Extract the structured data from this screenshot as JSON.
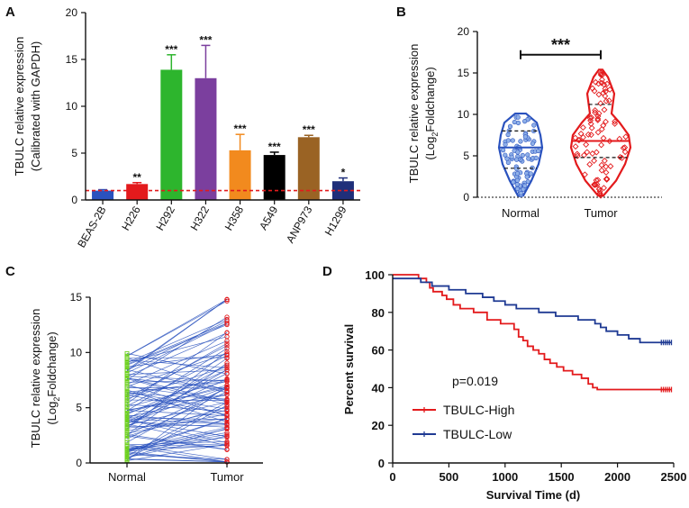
{
  "chart_data": [
    {
      "panel": "A",
      "type": "bar",
      "ylabel_line1": "TBULC relative expression",
      "ylabel_line2": "(Calibrated with GAPDH)",
      "ylim": [
        0,
        20
      ],
      "yticks": [
        0,
        5,
        10,
        15,
        20
      ],
      "categories": [
        "BEAS-2B",
        "H226",
        "H292",
        "H322",
        "H358",
        "A549",
        "ANP973",
        "H1299"
      ],
      "values": [
        1.0,
        1.7,
        13.9,
        13.0,
        5.3,
        4.8,
        6.7,
        2.0
      ],
      "errors": [
        0.1,
        0.15,
        1.6,
        3.5,
        1.7,
        0.3,
        0.2,
        0.35
      ],
      "significance": [
        "",
        "**",
        "***",
        "***",
        "***",
        "***",
        "***",
        "*"
      ],
      "colors": [
        "#2a52be",
        "#e31a1c",
        "#2db52d",
        "#7b3f9e",
        "#f28a1e",
        "#000000",
        "#9a6324",
        "#1f2f7a"
      ],
      "reference_line": 1
    },
    {
      "panel": "B",
      "type": "violin",
      "ylabel_line1": "TBULC relative expression",
      "ylabel_line2": "(Log",
      "ylabel_sub": "2",
      "ylabel_line2_end": "Foldchange)",
      "ylim": [
        0,
        20
      ],
      "yticks": [
        0,
        5,
        10,
        15,
        20
      ],
      "categories": [
        "Normal",
        "Tumor"
      ],
      "colors": [
        "#2a52be",
        "#e31a1c"
      ],
      "ranges": [
        [
          0.2,
          10.1
        ],
        [
          0.2,
          15.4
        ]
      ],
      "quartiles": [
        [
          3.5,
          6.0,
          8.0
        ],
        [
          4.8,
          6.8,
          11.2
        ]
      ],
      "significance": "***"
    },
    {
      "panel": "C",
      "type": "paired-line",
      "ylabel_line1": "TBULC relative expression",
      "ylabel_line2": "(Log",
      "ylabel_sub": "2",
      "ylabel_line2_end": "Foldchange)",
      "ylim": [
        0,
        15
      ],
      "yticks": [
        0,
        5,
        10,
        15
      ],
      "categories": [
        "Normal",
        "Tumor"
      ],
      "colors": [
        "#6fd11f",
        "#e31a1c",
        "#2a52be"
      ],
      "pairs": 100
    },
    {
      "panel": "D",
      "type": "line",
      "title": "",
      "xlabel": "Survival Time (d)",
      "ylabel": "Percent survival",
      "xlim": [
        0,
        2500
      ],
      "ylim": [
        0,
        100
      ],
      "xticks": [
        0,
        500,
        1000,
        1500,
        2000,
        2500
      ],
      "yticks": [
        0,
        20,
        40,
        60,
        80,
        100
      ],
      "annotation": "p=0.019",
      "series": [
        {
          "name": "TBULC-High",
          "color": "#e31a1c",
          "x": [
            0,
            150,
            230,
            300,
            330,
            360,
            440,
            480,
            540,
            600,
            720,
            840,
            960,
            1080,
            1120,
            1160,
            1200,
            1250,
            1300,
            1350,
            1400,
            1460,
            1520,
            1600,
            1680,
            1740,
            1780,
            1820,
            1900,
            2400,
            2480
          ],
          "y": [
            100,
            100,
            98,
            96,
            93,
            91,
            89,
            87,
            84,
            82,
            80,
            76,
            74,
            71,
            67,
            65,
            62,
            60,
            58,
            55,
            53,
            51,
            49,
            47,
            45,
            42,
            40,
            39,
            39,
            39,
            39
          ]
        },
        {
          "name": "TBULC-Low",
          "color": "#1f3a93",
          "x": [
            0,
            150,
            250,
            350,
            500,
            650,
            800,
            900,
            1000,
            1100,
            1300,
            1450,
            1650,
            1800,
            1850,
            1900,
            2000,
            2100,
            2200,
            2400,
            2480
          ],
          "y": [
            98,
            98,
            96,
            94,
            92,
            90,
            88,
            86,
            84,
            82,
            80,
            78,
            76,
            74,
            72,
            70,
            68,
            66,
            64,
            64,
            64
          ]
        }
      ]
    }
  ]
}
